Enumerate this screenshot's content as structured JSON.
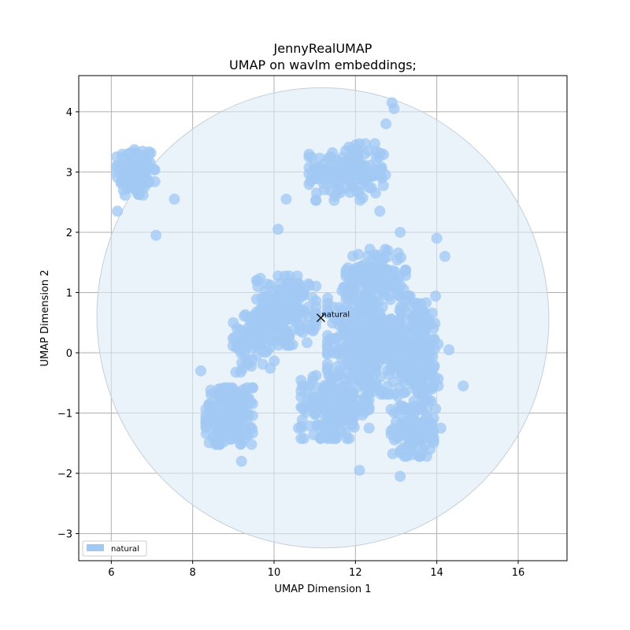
{
  "chart_data": {
    "type": "scatter",
    "title": "JennyRealUMAP",
    "subtitle": "UMAP on wavlm embeddings;",
    "xlabel": "UMAP Dimension 1",
    "ylabel": "UMAP Dimension 2",
    "xlim": [
      5.2,
      17.2
    ],
    "ylim": [
      -3.45,
      4.6
    ],
    "xticks": [
      6,
      8,
      10,
      12,
      14,
      16
    ],
    "yticks": [
      4,
      3,
      2,
      1,
      0,
      -1,
      -2,
      -3
    ],
    "grid": true,
    "legend_position": "lower-left",
    "series": [
      {
        "name": "natural",
        "color": "#a1c9f4",
        "clusters": [
          {
            "cx": 6.6,
            "cy": 3.0,
            "rx": 0.45,
            "ry": 0.4,
            "n": 120
          },
          {
            "cx": 11.8,
            "cy": 3.0,
            "rx": 0.9,
            "ry": 0.45,
            "n": 160
          },
          {
            "cx": 8.9,
            "cy": -1.05,
            "rx": 0.55,
            "ry": 0.45,
            "n": 200
          },
          {
            "cx": 10.3,
            "cy": 0.7,
            "rx": 0.7,
            "ry": 0.55,
            "n": 170
          },
          {
            "cx": 12.2,
            "cy": 0.2,
            "rx": 0.85,
            "ry": 0.85,
            "n": 320
          },
          {
            "cx": 13.5,
            "cy": 0.0,
            "rx": 0.6,
            "ry": 0.9,
            "n": 250
          },
          {
            "cx": 11.5,
            "cy": -0.9,
            "rx": 0.8,
            "ry": 0.5,
            "n": 200
          },
          {
            "cx": 12.5,
            "cy": 1.3,
            "rx": 0.7,
            "ry": 0.4,
            "n": 120
          },
          {
            "cx": 9.5,
            "cy": 0.2,
            "rx": 0.5,
            "ry": 0.5,
            "n": 90
          },
          {
            "cx": 13.4,
            "cy": -1.3,
            "rx": 0.5,
            "ry": 0.4,
            "n": 100
          }
        ],
        "outliers": [
          [
            7.1,
            1.95
          ],
          [
            7.55,
            2.55
          ],
          [
            6.15,
            2.35
          ],
          [
            12.9,
            4.15
          ],
          [
            12.95,
            4.05
          ],
          [
            12.75,
            3.8
          ],
          [
            10.1,
            2.05
          ],
          [
            10.3,
            2.55
          ],
          [
            12.6,
            2.35
          ],
          [
            8.2,
            -0.3
          ],
          [
            13.1,
            2.0
          ],
          [
            14.3,
            0.05
          ],
          [
            14.65,
            -0.55
          ],
          [
            14.1,
            -1.25
          ],
          [
            13.1,
            -2.05
          ],
          [
            12.1,
            -1.95
          ],
          [
            9.2,
            -1.8
          ],
          [
            9.0,
            0.5
          ],
          [
            9.6,
            1.1
          ],
          [
            10.6,
            -1.25
          ],
          [
            11.3,
            -1.35
          ],
          [
            14.0,
            1.9
          ],
          [
            14.2,
            1.6
          ]
        ],
        "centroid": {
          "x": 11.15,
          "y": 0.58,
          "label": "natural"
        },
        "ellipse": {
          "cx": 11.2,
          "cy": 0.58,
          "rx": 5.55,
          "ry": 3.82,
          "angle_deg": -10
        }
      }
    ]
  }
}
